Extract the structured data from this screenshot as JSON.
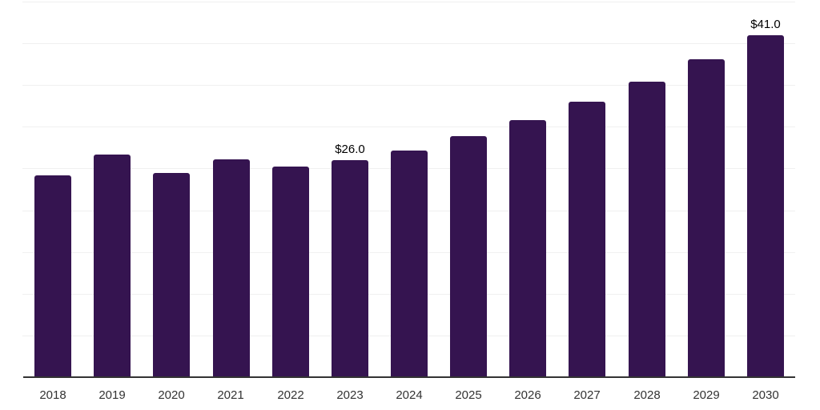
{
  "chart_data": {
    "type": "bar",
    "title": "",
    "xlabel": "",
    "ylabel": "",
    "categories": [
      "2018",
      "2019",
      "2020",
      "2021",
      "2022",
      "2023",
      "2024",
      "2025",
      "2026",
      "2027",
      "2028",
      "2029",
      "2030"
    ],
    "values": [
      24.2,
      26.7,
      24.5,
      26.1,
      25.2,
      26.0,
      27.2,
      28.9,
      30.8,
      33.0,
      35.4,
      38.1,
      41.0
    ],
    "data_labels": [
      {
        "category": "2023",
        "text": "$26.0"
      },
      {
        "category": "2030",
        "text": "$41.0"
      }
    ],
    "ylim": [
      0,
      45
    ],
    "gridline_step": 5,
    "grid": "horizontal",
    "legend": "none",
    "y_axis_labels_visible": false,
    "colors": {
      "bar": "#351450",
      "gridline": "#f0f0f0",
      "axis_line": "#333333",
      "tick_label": "#333333",
      "data_label": "#000000",
      "background": "#ffffff"
    }
  }
}
